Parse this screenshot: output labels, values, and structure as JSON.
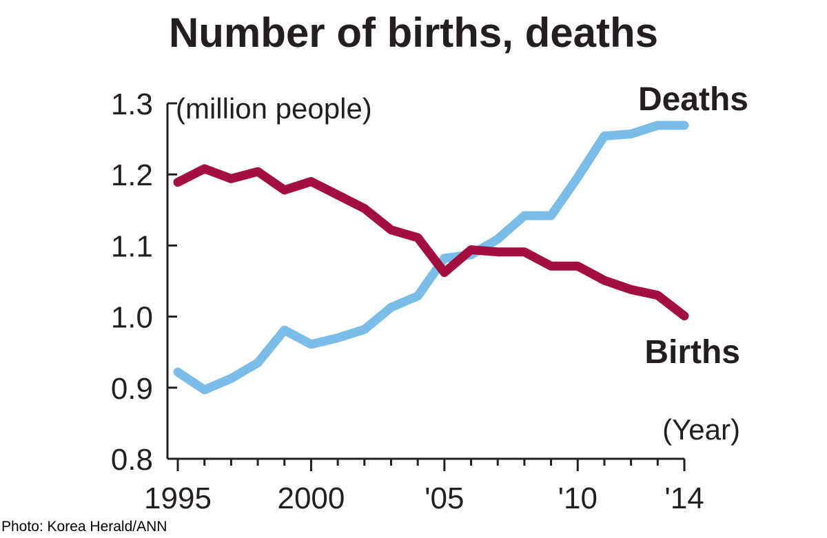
{
  "chart_data": {
    "type": "line",
    "title": "Number of births, deaths",
    "ylabel": "(million people)",
    "xlabel": "(Year)",
    "ylim": [
      0.8,
      1.3
    ],
    "xlim": [
      1995,
      2014
    ],
    "y_ticks": [
      "0.8",
      "0.9",
      "1.0",
      "1.1",
      "1.2",
      "1.3"
    ],
    "y_tick_values": [
      0.8,
      0.9,
      1.0,
      1.1,
      1.2,
      1.3
    ],
    "x_tick_labels": [
      "1995",
      "2000",
      "'05",
      "'10",
      "'14"
    ],
    "x_tick_label_years": [
      1995,
      2000,
      2005,
      2010,
      2014
    ],
    "x": [
      1995,
      1996,
      1997,
      1998,
      1999,
      2000,
      2001,
      2002,
      2003,
      2004,
      2005,
      2006,
      2007,
      2008,
      2009,
      2010,
      2011,
      2012,
      2013,
      2014
    ],
    "grid": false,
    "series": [
      {
        "name": "Deaths",
        "color": "#79bde8",
        "values": [
          0.922,
          0.897,
          0.913,
          0.935,
          0.981,
          0.961,
          0.97,
          0.982,
          1.013,
          1.029,
          1.082,
          1.087,
          1.109,
          1.142,
          1.142,
          1.196,
          1.254,
          1.257,
          1.269,
          1.269
        ]
      },
      {
        "name": "Births",
        "color": "#a3103f",
        "values": [
          1.189,
          1.208,
          1.194,
          1.204,
          1.178,
          1.19,
          1.171,
          1.152,
          1.122,
          1.111,
          1.062,
          1.094,
          1.091,
          1.091,
          1.071,
          1.071,
          1.051,
          1.038,
          1.03,
          1.001
        ]
      }
    ]
  },
  "source": "Photo: Korea Herald/ANN"
}
